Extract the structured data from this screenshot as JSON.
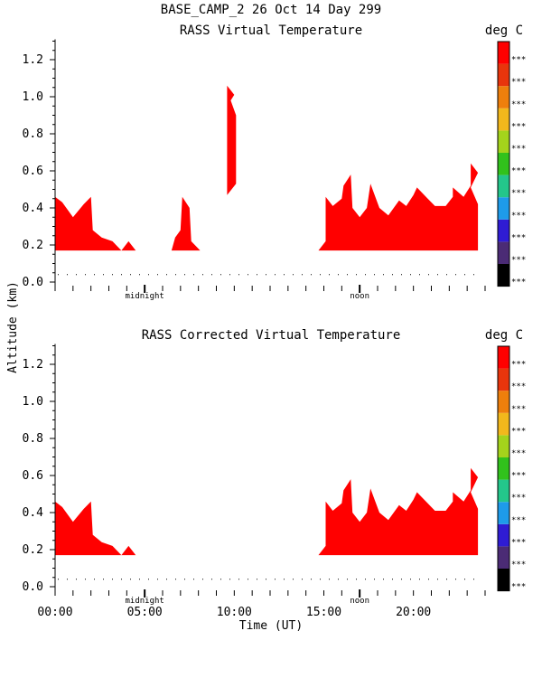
{
  "header": {
    "line1": "BASE_CAMP_2  26 Oct 14 Day 299"
  },
  "ylabel": "Altitude (km)",
  "xlabel": "Time (UT)",
  "unit": "deg C",
  "x_ticks": [
    "00:00",
    "05:00",
    "10:00",
    "15:00",
    "20:00"
  ],
  "y_ticks": [
    "0.0",
    "0.2",
    "0.4",
    "0.6",
    "0.8",
    "1.0",
    "1.2"
  ],
  "marker_midnight": "midnight",
  "marker_noon": "noon",
  "colorbar": {
    "labels": [
      "***",
      "***",
      "***",
      "***",
      "***",
      "***",
      "***",
      "***",
      "***",
      "***",
      "***"
    ],
    "colors": [
      "#000000",
      "#4b2b75",
      "#2f1cd3",
      "#1e9bea",
      "#24c68b",
      "#31c21c",
      "#a4d31c",
      "#f2b81c",
      "#ee7f0c",
      "#e8350c",
      "#ff0000"
    ]
  },
  "panels": [
    {
      "title": "RASS Virtual Temperature"
    },
    {
      "title": "RASS Corrected Virtual Temperature"
    }
  ],
  "chart_data": [
    {
      "type": "heatmap",
      "title": "RASS Virtual Temperature",
      "xlabel": "Time (UT)",
      "ylabel": "Altitude (km)",
      "xlim": [
        0,
        24
      ],
      "ylim": [
        0,
        1.3
      ],
      "fill_color": "#ff0000",
      "regions": [
        {
          "top": [
            [
              0,
              0.46
            ],
            [
              0.4,
              0.43
            ],
            [
              1.0,
              0.35
            ],
            [
              1.6,
              0.42
            ],
            [
              2.0,
              0.46
            ],
            [
              2.1,
              0.28
            ],
            [
              2.6,
              0.24
            ],
            [
              3.2,
              0.22
            ],
            [
              3.7,
              0.17
            ],
            [
              4.1,
              0.22
            ],
            [
              4.5,
              0.17
            ]
          ],
          "bottom": 0.17
        },
        {
          "top": [
            [
              6.5,
              0.17
            ],
            [
              6.7,
              0.24
            ],
            [
              7.0,
              0.28
            ],
            [
              7.1,
              0.46
            ],
            [
              7.5,
              0.4
            ],
            [
              7.6,
              0.22
            ],
            [
              8.1,
              0.17
            ]
          ],
          "bottom": 0.17
        },
        {
          "top": [
            [
              9.6,
              0.95
            ],
            [
              9.6,
              1.06
            ],
            [
              10.0,
              1.01
            ],
            [
              9.8,
              0.98
            ],
            [
              10.1,
              0.9
            ],
            [
              10.1,
              0.53
            ],
            [
              9.6,
              0.47
            ]
          ],
          "bottom": null
        },
        {
          "top": [
            [
              14.7,
              0.17
            ],
            [
              15.1,
              0.22
            ],
            [
              15.1,
              0.46
            ],
            [
              15.5,
              0.41
            ],
            [
              16.0,
              0.45
            ],
            [
              16.1,
              0.52
            ],
            [
              16.5,
              0.58
            ],
            [
              16.6,
              0.4
            ],
            [
              17.0,
              0.35
            ],
            [
              17.4,
              0.4
            ],
            [
              17.6,
              0.53
            ],
            [
              18.1,
              0.4
            ],
            [
              18.6,
              0.36
            ],
            [
              19.2,
              0.44
            ],
            [
              19.6,
              0.41
            ],
            [
              20.0,
              0.47
            ],
            [
              20.2,
              0.51
            ],
            [
              20.8,
              0.45
            ],
            [
              21.2,
              0.41
            ],
            [
              21.8,
              0.41
            ],
            [
              22.2,
              0.46
            ],
            [
              22.2,
              0.51
            ],
            [
              22.8,
              0.46
            ],
            [
              23.2,
              0.52
            ],
            [
              23.2,
              0.64
            ],
            [
              23.6,
              0.59
            ],
            [
              23.2,
              0.51
            ],
            [
              23.6,
              0.42
            ],
            [
              23.6,
              0.17
            ]
          ],
          "bottom": 0.17
        }
      ]
    },
    {
      "type": "heatmap",
      "title": "RASS Corrected Virtual Temperature",
      "xlabel": "Time (UT)",
      "ylabel": "Altitude (km)",
      "xlim": [
        0,
        24
      ],
      "ylim": [
        0,
        1.3
      ],
      "fill_color": "#ff0000",
      "regions": [
        {
          "top": [
            [
              0,
              0.46
            ],
            [
              0.4,
              0.43
            ],
            [
              1.0,
              0.35
            ],
            [
              1.6,
              0.42
            ],
            [
              2.0,
              0.46
            ],
            [
              2.1,
              0.28
            ],
            [
              2.6,
              0.24
            ],
            [
              3.2,
              0.22
            ],
            [
              3.7,
              0.17
            ],
            [
              4.1,
              0.22
            ],
            [
              4.5,
              0.17
            ]
          ],
          "bottom": 0.17
        },
        {
          "top": [
            [
              14.7,
              0.17
            ],
            [
              15.1,
              0.22
            ],
            [
              15.1,
              0.46
            ],
            [
              15.5,
              0.41
            ],
            [
              16.0,
              0.45
            ],
            [
              16.1,
              0.52
            ],
            [
              16.5,
              0.58
            ],
            [
              16.6,
              0.4
            ],
            [
              17.0,
              0.35
            ],
            [
              17.4,
              0.4
            ],
            [
              17.6,
              0.53
            ],
            [
              18.1,
              0.4
            ],
            [
              18.6,
              0.36
            ],
            [
              19.2,
              0.44
            ],
            [
              19.6,
              0.41
            ],
            [
              20.0,
              0.47
            ],
            [
              20.2,
              0.51
            ],
            [
              20.8,
              0.45
            ],
            [
              21.2,
              0.41
            ],
            [
              21.8,
              0.41
            ],
            [
              22.2,
              0.46
            ],
            [
              22.2,
              0.51
            ],
            [
              22.8,
              0.46
            ],
            [
              23.2,
              0.52
            ],
            [
              23.2,
              0.64
            ],
            [
              23.6,
              0.59
            ],
            [
              23.2,
              0.51
            ],
            [
              23.6,
              0.42
            ],
            [
              23.6,
              0.17
            ]
          ],
          "bottom": 0.17
        }
      ]
    }
  ]
}
